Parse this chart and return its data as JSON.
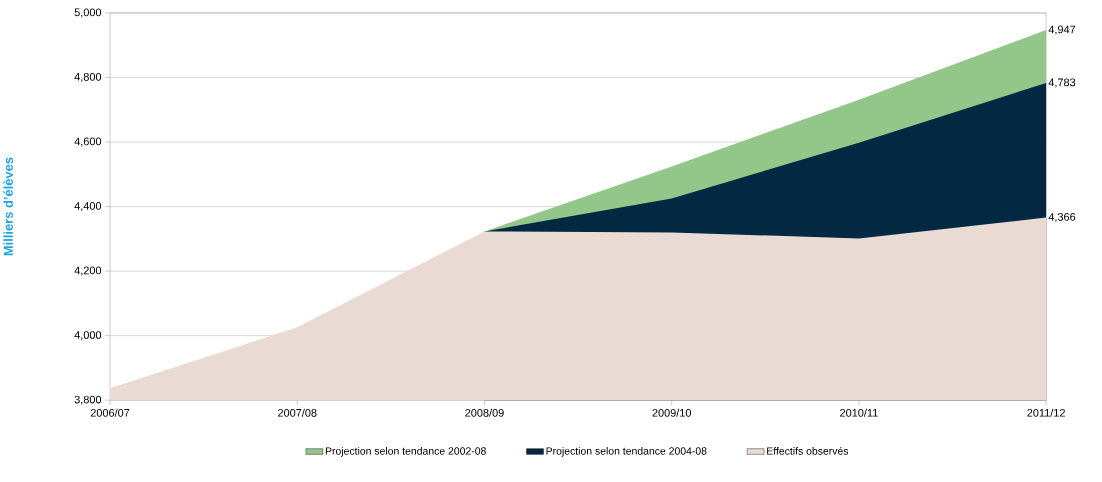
{
  "chart_data": {
    "type": "area",
    "ylabel": "Milliers d’élèves",
    "categories": [
      "2006/07",
      "2007/08",
      "2008/09",
      "2009/10",
      "2010/11",
      "2011/12"
    ],
    "series": [
      {
        "name": "Projection selon  tendance 2002-08",
        "color": "#93c789",
        "values": [
          null,
          null,
          4323,
          4524,
          4731,
          4947
        ],
        "value_labels": [
          null,
          null,
          null,
          null,
          null,
          "4,947"
        ]
      },
      {
        "name": "Projection selon  tendance 2004-08",
        "color": "#022842",
        "values": [
          null,
          null,
          4323,
          4425,
          4598,
          4783
        ],
        "value_labels": [
          null,
          null,
          null,
          null,
          null,
          "4,783"
        ]
      },
      {
        "name": "Effectifs observés",
        "color": "#eadad4",
        "values": [
          3837,
          4026,
          4323,
          4320,
          4301,
          4366
        ],
        "value_labels": [
          null,
          null,
          null,
          null,
          null,
          "4,366"
        ]
      }
    ],
    "ylim": [
      3800,
      5000
    ],
    "yticks": [
      {
        "value": 3800,
        "label": "3,800"
      },
      {
        "value": 4000,
        "label": "4,000"
      },
      {
        "value": 4200,
        "label": "4,200"
      },
      {
        "value": 4400,
        "label": "4,400"
      },
      {
        "value": 4600,
        "label": "4,600"
      },
      {
        "value": 4800,
        "label": "4,800"
      },
      {
        "value": 5000,
        "label": "5,000"
      }
    ],
    "grid": "y",
    "legend": "bottom"
  }
}
